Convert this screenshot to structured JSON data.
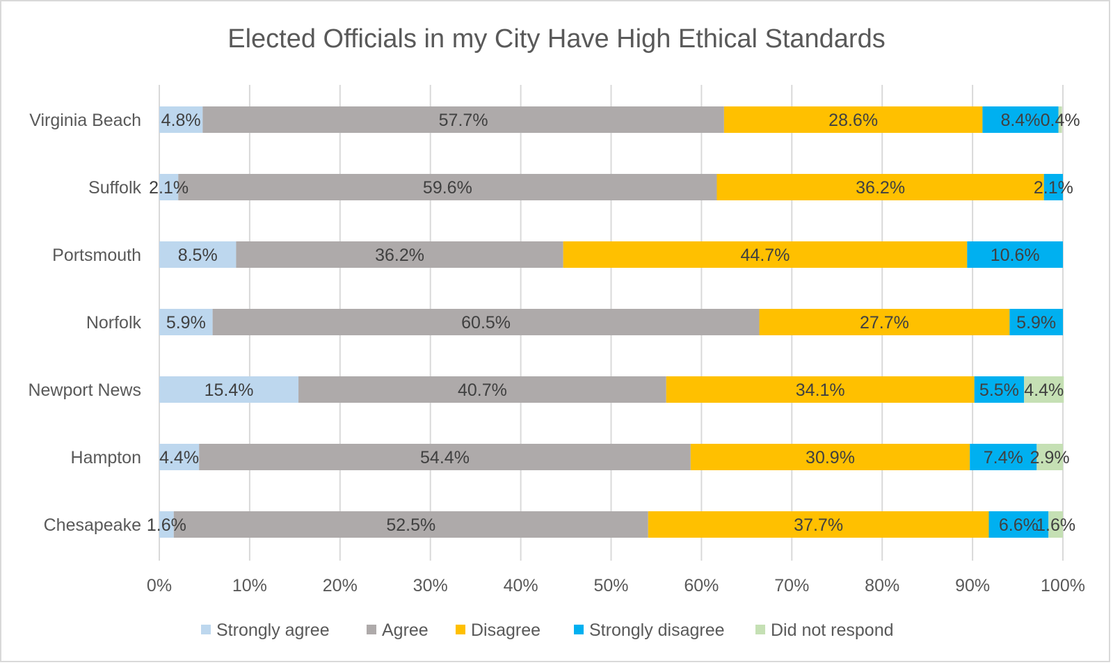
{
  "chart_data": {
    "type": "bar",
    "orientation": "horizontal",
    "stacked": "percent",
    "title": "Elected Officials in my City Have High Ethical Standards",
    "xlabel": "",
    "ylabel": "",
    "xlim": [
      0,
      100
    ],
    "x_ticks": [
      "0%",
      "10%",
      "20%",
      "30%",
      "40%",
      "50%",
      "60%",
      "70%",
      "80%",
      "90%",
      "100%"
    ],
    "grid": "vertical",
    "legend_position": "bottom",
    "categories": [
      "Virginia Beach",
      "Suffolk",
      "Portsmouth",
      "Norfolk",
      "Newport News",
      "Hampton",
      "Chesapeake"
    ],
    "series": [
      {
        "name": "Strongly agree",
        "color": "#bdd7ee",
        "values": [
          4.8,
          2.1,
          8.5,
          5.9,
          15.4,
          4.4,
          1.6
        ]
      },
      {
        "name": "Agree",
        "color": "#aeaaaa",
        "values": [
          57.7,
          59.6,
          36.2,
          60.5,
          40.7,
          54.4,
          52.5
        ]
      },
      {
        "name": "Disagree",
        "color": "#ffc000",
        "values": [
          28.6,
          36.2,
          44.7,
          27.7,
          34.1,
          30.9,
          37.7
        ]
      },
      {
        "name": "Strongly disagree",
        "color": "#00b0f0",
        "values": [
          8.4,
          2.1,
          10.6,
          5.9,
          5.5,
          7.4,
          6.6
        ]
      },
      {
        "name": "Did not respond",
        "color": "#c5e0b4",
        "values": [
          0.4,
          0,
          0,
          0,
          4.4,
          2.9,
          1.6
        ]
      }
    ],
    "data_labels": [
      [
        "4.8%",
        "57.7%",
        "28.6%",
        "8.4%",
        "0.4%"
      ],
      [
        "2.1%",
        "59.6%",
        "36.2%",
        "2.1%",
        ""
      ],
      [
        "8.5%",
        "36.2%",
        "44.7%",
        "10.6%",
        ""
      ],
      [
        "5.9%",
        "60.5%",
        "27.7%",
        "5.9%",
        ""
      ],
      [
        "15.4%",
        "40.7%",
        "34.1%",
        "5.5%",
        "4.4%"
      ],
      [
        "4.4%",
        "54.4%",
        "30.9%",
        "7.4%",
        "2.9%"
      ],
      [
        "1.6%",
        "52.5%",
        "37.7%",
        "6.6%",
        "1.6%"
      ]
    ]
  }
}
